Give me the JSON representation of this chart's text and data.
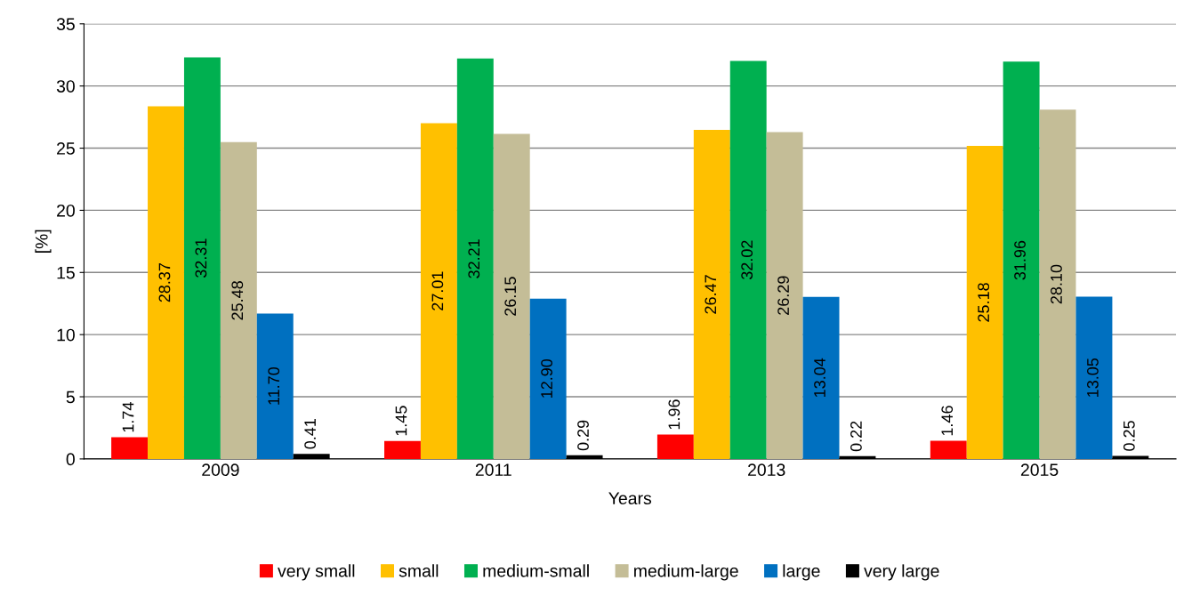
{
  "chart_data": {
    "type": "bar",
    "xlabel": "Years",
    "ylabel": "[%]",
    "categories": [
      "2009",
      "2011",
      "2013",
      "2015"
    ],
    "series": [
      {
        "name": "very small",
        "color": "#ff0000",
        "values": [
          1.74,
          1.45,
          1.96,
          1.46
        ],
        "value_labels": [
          "1.74",
          "1.45",
          "1.96",
          "1.46"
        ]
      },
      {
        "name": "small",
        "color": "#ffc000",
        "values": [
          28.37,
          27.01,
          26.47,
          25.18
        ],
        "value_labels": [
          "28.37",
          "27.01",
          "26.47",
          "25.18"
        ]
      },
      {
        "name": "medium-small",
        "color": "#00b050",
        "values": [
          32.31,
          32.21,
          32.02,
          31.96
        ],
        "value_labels": [
          "32.31",
          "32.21",
          "32.02",
          "31.96"
        ]
      },
      {
        "name": "medium-large",
        "color": "#c4bd97",
        "values": [
          25.48,
          26.15,
          26.29,
          28.1
        ],
        "value_labels": [
          "25.48",
          "26.15",
          "26.29",
          "28.10"
        ]
      },
      {
        "name": "large",
        "color": "#0070c0",
        "values": [
          11.7,
          12.9,
          13.04,
          13.05
        ],
        "value_labels": [
          "11.70",
          "12.90",
          "13.04",
          "13.05"
        ]
      },
      {
        "name": "very large",
        "color": "#000000",
        "values": [
          0.41,
          0.29,
          0.22,
          0.25
        ],
        "value_labels": [
          "0.41",
          "0.29",
          "0.22",
          "0.25"
        ]
      }
    ],
    "ylim": [
      0,
      35
    ],
    "yticks": [
      0,
      5,
      10,
      15,
      20,
      25,
      30,
      35
    ],
    "grid": "y",
    "legend": "bottom"
  }
}
